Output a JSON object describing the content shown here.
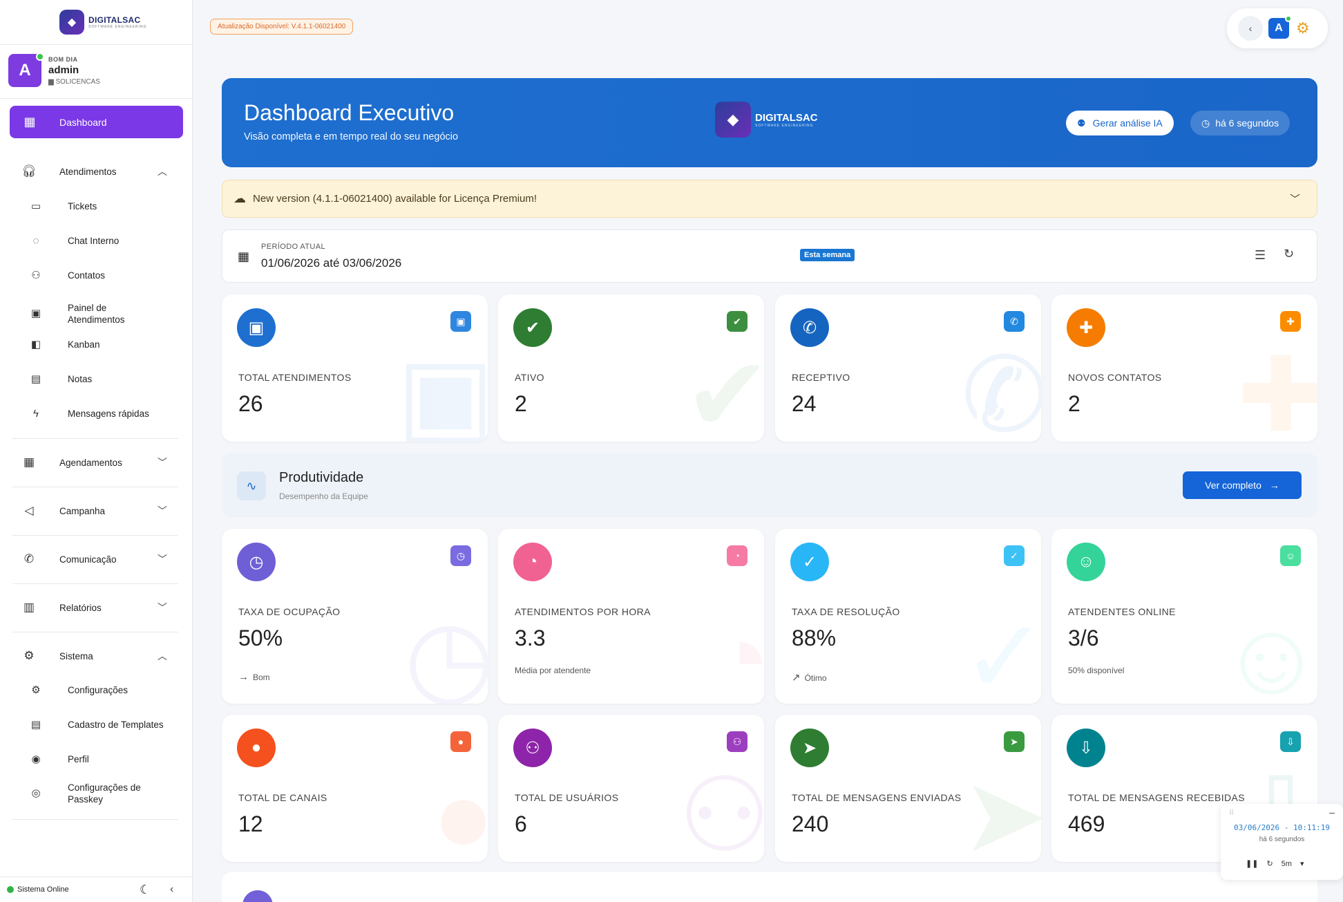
{
  "sidebar": {
    "logo_text": "DIGITALSAC",
    "logo_sub": "SOFTWARE ENGINEERING",
    "user": {
      "greeting": "BOM DIA",
      "name": "admin",
      "company": "SOLICENCAS",
      "initial": "A"
    },
    "active": {
      "label": "Dashboard",
      "icon": "dashboard-icon"
    },
    "items": [
      {
        "label": "Atendimentos",
        "icon": "headset-icon",
        "chevron": "^"
      },
      {
        "label": "Tickets",
        "icon": "tickets-icon"
      },
      {
        "label": "Chat Interno",
        "icon": "chat-icon"
      },
      {
        "label": "Contatos",
        "icon": "contacts-icon"
      },
      {
        "label": "Painel de Atendimentos",
        "icon": "monitor-icon"
      },
      {
        "label": "Kanban",
        "icon": "kanban-icon"
      },
      {
        "label": "Notas",
        "icon": "notes-icon"
      },
      {
        "label": "Mensagens rápidas",
        "icon": "bolt-icon"
      },
      {
        "label": "Agendamentos",
        "icon": "calendar-clock-icon",
        "chevron": "v"
      },
      {
        "label": "Campanha",
        "icon": "megaphone-icon",
        "chevron": "v"
      },
      {
        "label": "Comunicação",
        "icon": "phone-icon",
        "chevron": "v"
      },
      {
        "label": "Relatórios",
        "icon": "chart-icon",
        "chevron": "v"
      },
      {
        "label": "Sistema",
        "icon": "gear-icon",
        "chevron": "^"
      },
      {
        "label": "Configurações",
        "icon": "settings-icon"
      },
      {
        "label": "Cadastro de Templates",
        "icon": "template-icon"
      },
      {
        "label": "Perfil",
        "icon": "profile-icon"
      },
      {
        "label": "Configurações de Passkey",
        "icon": "fingerprint-icon"
      }
    ],
    "status": "Sistema Online"
  },
  "update_badge": "Atualização Disponível: V.4.1.1-06021400",
  "topbar": {
    "avatar_initial": "A"
  },
  "hero": {
    "title": "Dashboard Executivo",
    "subtitle": "Visão completa e em tempo real do seu negócio",
    "logo_text": "DIGITALSAC",
    "logo_sub": "SOFTWARE ENGINEERING",
    "ia_button": "Gerar análise IA",
    "time_button": "há 6 segundos"
  },
  "alert": {
    "text": "New version (4.1.1-06021400) available for Licença Premium!"
  },
  "period": {
    "label": "PERÍODO ATUAL",
    "value": "01/06/2026 até 03/06/2026",
    "badge": "Esta semana"
  },
  "stats_row1": [
    {
      "label": "TOTAL ATENDIMENTOS",
      "value": "26",
      "color": "#1e6fd0",
      "mini": "#2f86e0",
      "icon": "id-card-icon"
    },
    {
      "label": "ATIVO",
      "value": "2",
      "color": "#2e7d32",
      "mini": "#3c8f3f",
      "icon": "user-check-icon"
    },
    {
      "label": "RECEPTIVO",
      "value": "24",
      "color": "#1565c0",
      "mini": "#2288e0",
      "icon": "phone-incoming-icon"
    },
    {
      "label": "NOVOS CONTATOS",
      "value": "2",
      "color": "#f57c00",
      "mini": "#fb8c00",
      "icon": "user-plus-icon"
    }
  ],
  "productivity": {
    "title": "Produtividade",
    "subtitle": "Desempenho da Equipe",
    "button": "Ver completo"
  },
  "stats_row2": [
    {
      "label": "TAXA DE OCUPAÇÃO",
      "value": "50%",
      "note": "Bom",
      "note_icon": "→",
      "color": "#6f5fd6",
      "mini": "#7a6ce0",
      "icon": "clock-icon"
    },
    {
      "label": "ATENDIMENTOS POR HORA",
      "value": "3.3",
      "note": "Média por atendente",
      "note_icon": "",
      "color": "#f06292",
      "mini": "#f57ba5",
      "icon": "speedometer-icon"
    },
    {
      "label": "TAXA DE RESOLUÇÃO",
      "value": "88%",
      "note": "Ótimo",
      "note_icon": "↗",
      "color": "#29b6f6",
      "mini": "#3cc2f5",
      "icon": "check-circle-icon"
    },
    {
      "label": "ATENDENTES ONLINE",
      "value": "3/6",
      "note": "50% disponível",
      "note_icon": "",
      "color": "#34d399",
      "mini": "#4ade9f",
      "icon": "user-online-icon"
    }
  ],
  "stats_row3": [
    {
      "label": "TOTAL DE CANAIS",
      "value": "12",
      "color": "#f4511e",
      "mini": "#f4643a",
      "icon": "chat-bubble-icon"
    },
    {
      "label": "TOTAL DE USUÁRIOS",
      "value": "6",
      "color": "#8e24aa",
      "mini": "#9c3fbf",
      "icon": "users-icon"
    },
    {
      "label": "TOTAL DE MENSAGENS ENVIADAS",
      "value": "240",
      "color": "#2e7d32",
      "mini": "#3a9a3f",
      "icon": "send-icon"
    },
    {
      "label": "TOTAL DE MENSAGENS RECEBIDAS",
      "value": "469",
      "color": "#00838f",
      "mini": "#17a2b0",
      "icon": "inbox-icon"
    }
  ],
  "clock_widget": {
    "datetime": "03/06/2026 - 10:11:19",
    "ago": "há 6 segundos",
    "interval": "5m"
  }
}
